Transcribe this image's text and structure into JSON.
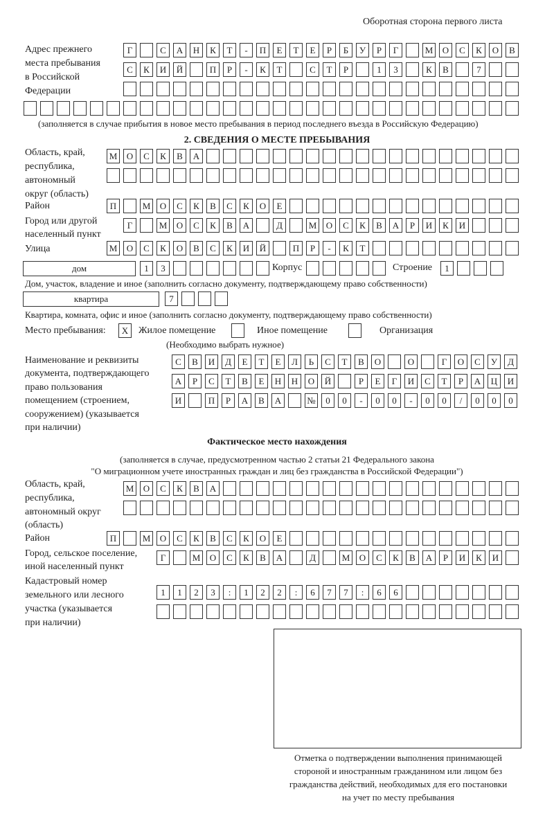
{
  "header": "Оборотная сторона первого листа",
  "prev_address": {
    "label": [
      "Адрес прежнего",
      "места пребывания",
      "в Российской",
      "Федерации"
    ],
    "rows": [
      "Г САНКТ-ПЕТЕРБУРГ МОСКОВ",
      "СКИЙ ПР-КТ СТР 13 КВ 7  ",
      "",
      ""
    ],
    "note": "(заполняется в случае прибытия в новое место пребывания в период последнего въезда в Российскую Федерацию)"
  },
  "section2": {
    "title": "2. СВЕДЕНИЯ О МЕСТЕ ПРЕБЫВАНИЯ",
    "region_label": [
      "Область, край,",
      "республика,",
      "автономный",
      "округ (область)"
    ],
    "region_rows": [
      "МОСКВА",
      ""
    ],
    "district_label": "Район",
    "district_row": "П МОСКВСКОЕ",
    "city_label": [
      "Город или другой",
      "населенный пункт"
    ],
    "city_row": "Г МОСКВА Д МОСКВАРИКИ",
    "street_label": "Улица",
    "street_row": "МОСКОВСКИЙ ПР-КТ",
    "house_type": "дом",
    "house_row": "13",
    "korpus_label": "Корпус",
    "korpus_row": "",
    "building_label": "Строение",
    "building_row": "1",
    "house_note": "Дом, участок, владение и иное (заполнить согласно документу, подтверждающему право собственности)",
    "flat_type": "квартира",
    "flat_row": "7",
    "flat_note": "Квартира, комната, офис и иное (заполнить согласно документу, подтверждающему право собственности)",
    "stay_label": "Место пребывания:",
    "options": [
      {
        "mark": "X",
        "label": "Жилое помещение"
      },
      {
        "mark": "",
        "label": "Иное помещение"
      },
      {
        "mark": "",
        "label": "Организация"
      }
    ],
    "choose_note": "(Необходимо выбрать нужное)",
    "doc_label": [
      "Наименование и реквизиты",
      "документа, подтверждающего",
      "право пользования",
      "помещением (строением,",
      "сооружением) (указывается",
      "при наличии)"
    ],
    "doc_rows": [
      "СВИДЕТЕЛЬСТВО О ГОСУД",
      "АРСТВЕННОЙ РЕГИСТРАЦИ",
      "И ПРАВА №00-00-00/000"
    ]
  },
  "actual": {
    "title": "Фактическое место нахождения",
    "note": [
      "(заполняется в случае, предусмотренном частью 2 статьи 21 Федерального закона",
      "\"О миграционном учете иностранных граждан и лиц без гражданства в Российской Федерации\")"
    ],
    "region_label": [
      "Область, край,",
      "республика,",
      "автономный округ",
      "(область)"
    ],
    "region_rows": [
      "МОСКВА",
      ""
    ],
    "district_label": "Район",
    "district_row": "П МОСКВСКОЕ",
    "city_label": [
      "Город, сельское поселение,",
      "иной населенный пункт"
    ],
    "city_row": "Г МОСКВА Д МОСКВАРИКИ",
    "cadastre_label": [
      "Кадастровый номер",
      "земельного или лесного",
      "участка (указывается",
      "при наличии)"
    ],
    "cadastre_rows": [
      "1123:122:677:66",
      ""
    ]
  },
  "stamp_caption": [
    "Отметка о подтверждении выполнения принимающей",
    "стороной и иностранным гражданином или лицом без",
    "гражданства действий, необходимых для его постановки",
    "на учет по месту пребывания"
  ]
}
